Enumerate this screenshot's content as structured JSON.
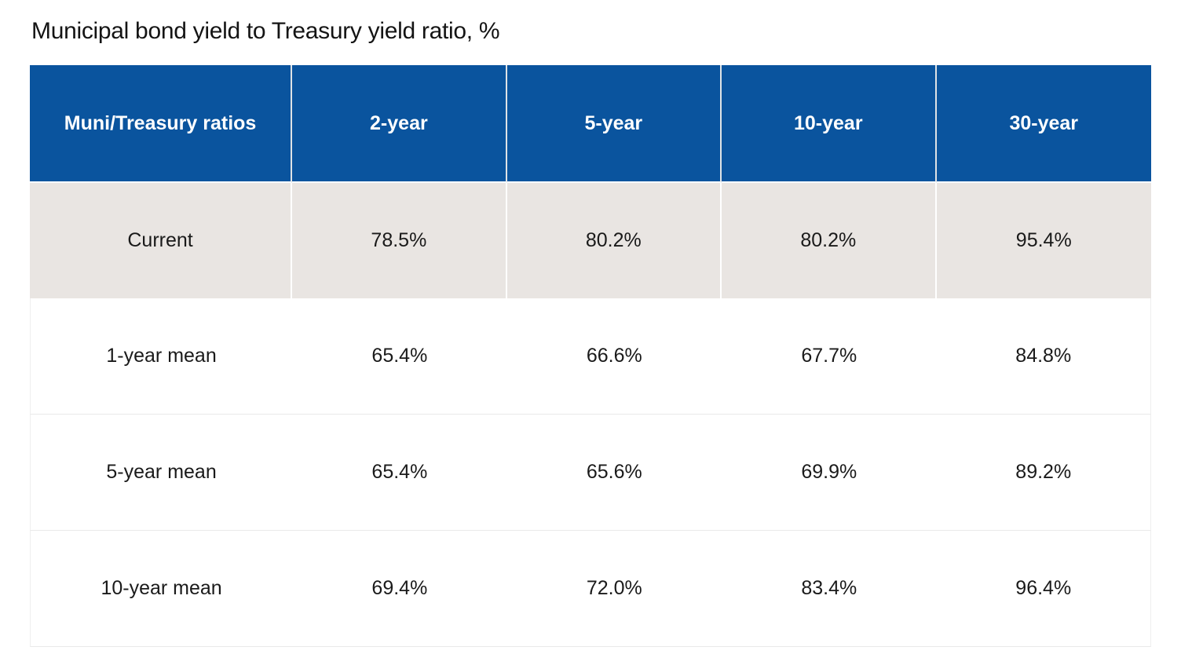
{
  "title": "Municipal bond yield to Treasury yield ratio, %",
  "colors": {
    "header_bg": "#0a549e",
    "header_text": "#ffffff",
    "highlight_row_bg": "#e9e5e2",
    "body_text": "#1a1a1a"
  },
  "table": {
    "columns": [
      "Muni/Treasury ratios",
      "2-year",
      "5-year",
      "10-year",
      "30-year"
    ],
    "rows": [
      {
        "label": "Current",
        "values": [
          "78.5%",
          "80.2%",
          "80.2%",
          "95.4%"
        ]
      },
      {
        "label": "1-year mean",
        "values": [
          "65.4%",
          "66.6%",
          "67.7%",
          "84.8%"
        ]
      },
      {
        "label": "5-year mean",
        "values": [
          "65.4%",
          "65.6%",
          "69.9%",
          "89.2%"
        ]
      },
      {
        "label": "10-year mean",
        "values": [
          "69.4%",
          "72.0%",
          "83.4%",
          "96.4%"
        ]
      }
    ]
  },
  "chart_data": {
    "type": "table",
    "title": "Municipal bond yield to Treasury yield ratio, %",
    "unit": "%",
    "columns": [
      "2-year",
      "5-year",
      "10-year",
      "30-year"
    ],
    "rows": [
      {
        "name": "Current",
        "values": [
          78.5,
          80.2,
          80.2,
          95.4
        ]
      },
      {
        "name": "1-year mean",
        "values": [
          65.4,
          66.6,
          67.7,
          84.8
        ]
      },
      {
        "name": "5-year mean",
        "values": [
          65.4,
          65.6,
          69.9,
          89.2
        ]
      },
      {
        "name": "10-year mean",
        "values": [
          69.4,
          72.0,
          83.4,
          96.4
        ]
      }
    ]
  }
}
